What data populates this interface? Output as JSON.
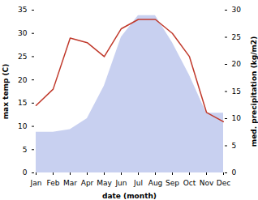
{
  "chart_data": {
    "type": "line",
    "categories": [
      "Jan",
      "Feb",
      "Mar",
      "Apr",
      "May",
      "Jun",
      "Jul",
      "Aug",
      "Sep",
      "Oct",
      "Nov",
      "Dec"
    ],
    "xlabel": "date (month)",
    "ylabel": "max temp (C)",
    "y2label": "med. precipitation (kg/m2)",
    "ylim": [
      0,
      35
    ],
    "yticks": [
      0,
      5,
      10,
      15,
      20,
      25,
      30,
      35
    ],
    "y2lim": [
      0,
      30
    ],
    "y2ticks": [
      0,
      5,
      10,
      15,
      20,
      25,
      30
    ],
    "grid": false,
    "series": [
      {
        "type": "area",
        "axis": "y2",
        "color": "#c8d0f0",
        "values": [
          7.5,
          7.5,
          8.0,
          10.0,
          16.0,
          25.0,
          29.0,
          29.0,
          24.0,
          18.0,
          11.0,
          11.0
        ]
      },
      {
        "type": "line",
        "color": "#c0392b",
        "values": [
          14.5,
          18.0,
          29.0,
          28.0,
          25.0,
          31.0,
          33.0,
          33.0,
          30.0,
          25.0,
          13.0,
          11.0
        ]
      }
    ]
  }
}
